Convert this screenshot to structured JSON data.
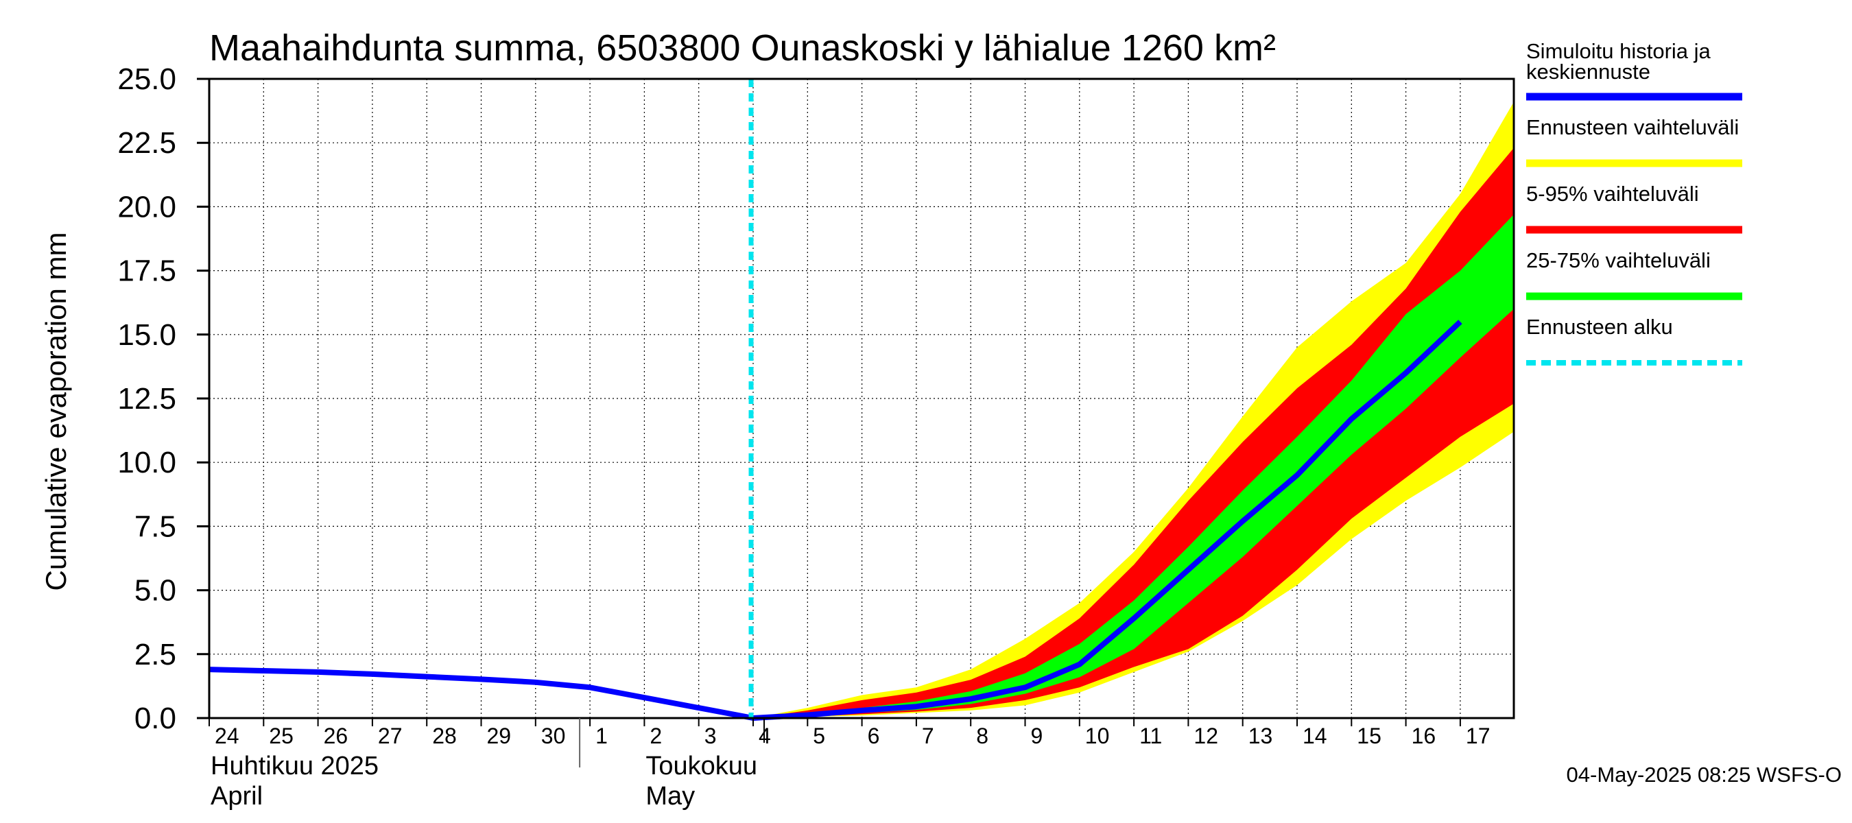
{
  "chart_data": {
    "type": "area",
    "title": "Maahaihdunta summa, 6503800 Ounaskoski y lähialue 1260 km²",
    "ylabel": "Cumulative evaporation   mm",
    "ylim": [
      0,
      25
    ],
    "yticks": [
      "0.0",
      "2.5",
      "5.0",
      "7.5",
      "10.0",
      "12.5",
      "15.0",
      "17.5",
      "20.0",
      "22.5",
      "25.0"
    ],
    "grid": true,
    "x_start_date": "2025-04-24",
    "x_end_date": "2025-05-17",
    "x_tick_labels": [
      "24",
      "25",
      "26",
      "27",
      "28",
      "29",
      "30",
      "1",
      "2",
      "3",
      "4",
      "5",
      "6",
      "7",
      "8",
      "9",
      "10",
      "11",
      "12",
      "13",
      "14",
      "15",
      "16",
      "17"
    ],
    "month_labels": [
      {
        "line1": "Huhtikuu  2025",
        "line2": "April",
        "date": "2025-04-24"
      },
      {
        "line1": "Toukokuu",
        "line2": "May",
        "date": "2025-05-02"
      }
    ],
    "month_separator_date": "2025-05-01",
    "forecast_start_date": "2025-05-04",
    "series": [
      {
        "name": "Simuloitu historia ja keskiennuste",
        "type": "line",
        "color": "#0000ff",
        "x": [
          "2025-04-24",
          "2025-04-25",
          "2025-04-26",
          "2025-04-27",
          "2025-04-28",
          "2025-04-29",
          "2025-04-30",
          "2025-05-01",
          "2025-05-02",
          "2025-05-03",
          "2025-05-04",
          "2025-05-05",
          "2025-05-06",
          "2025-05-07",
          "2025-05-08",
          "2025-05-09",
          "2025-05-10",
          "2025-05-11",
          "2025-05-12",
          "2025-05-13",
          "2025-05-14",
          "2025-05-15",
          "2025-05-16",
          "2025-05-17"
        ],
        "y": [
          1.9,
          1.85,
          1.8,
          1.72,
          1.62,
          1.52,
          1.4,
          1.2,
          0.8,
          0.4,
          0.0,
          0.12,
          0.3,
          0.45,
          0.75,
          1.2,
          2.1,
          3.9,
          5.8,
          7.7,
          9.5,
          11.7,
          13.5,
          15.5
        ]
      }
    ],
    "bands": [
      {
        "name": "Ennusteen vaihteluväli",
        "color": "#ffff00",
        "x": [
          "2025-05-04",
          "2025-05-05",
          "2025-05-06",
          "2025-05-07",
          "2025-05-08",
          "2025-05-09",
          "2025-05-10",
          "2025-05-11",
          "2025-05-12",
          "2025-05-13",
          "2025-05-14",
          "2025-05-15",
          "2025-05-16",
          "2025-05-17",
          "2025-05-18"
        ],
        "upper": [
          0.0,
          0.4,
          0.9,
          1.2,
          1.9,
          3.1,
          4.5,
          6.5,
          9.0,
          11.8,
          14.5,
          16.3,
          17.8,
          20.5,
          24.1
        ],
        "lower": [
          0.0,
          0.05,
          0.1,
          0.2,
          0.3,
          0.5,
          1.0,
          1.8,
          2.6,
          3.8,
          5.2,
          7.0,
          8.5,
          9.8,
          11.2
        ]
      },
      {
        "name": "5-95% vaihteluväli",
        "color": "#ff0000",
        "x": [
          "2025-05-04",
          "2025-05-05",
          "2025-05-06",
          "2025-05-07",
          "2025-05-08",
          "2025-05-09",
          "2025-05-10",
          "2025-05-11",
          "2025-05-12",
          "2025-05-13",
          "2025-05-14",
          "2025-05-15",
          "2025-05-16",
          "2025-05-17",
          "2025-05-18"
        ],
        "upper": [
          0.0,
          0.3,
          0.7,
          1.0,
          1.5,
          2.4,
          3.9,
          6.0,
          8.5,
          10.8,
          12.9,
          14.6,
          16.8,
          19.8,
          22.3
        ],
        "lower": [
          0.0,
          0.05,
          0.15,
          0.25,
          0.4,
          0.7,
          1.2,
          2.0,
          2.7,
          4.0,
          5.8,
          7.8,
          9.4,
          11.0,
          12.3
        ]
      },
      {
        "name": "25-75% vaihteluväli",
        "color": "#00ff00",
        "x": [
          "2025-05-04",
          "2025-05-05",
          "2025-05-06",
          "2025-05-07",
          "2025-05-08",
          "2025-05-09",
          "2025-05-10",
          "2025-05-11",
          "2025-05-12",
          "2025-05-13",
          "2025-05-14",
          "2025-05-15",
          "2025-05-16",
          "2025-05-17",
          "2025-05-18"
        ],
        "upper": [
          0.0,
          0.18,
          0.4,
          0.65,
          1.05,
          1.75,
          2.9,
          4.6,
          6.7,
          8.9,
          11.0,
          13.2,
          15.8,
          17.5,
          19.7
        ],
        "lower": [
          0.0,
          0.08,
          0.2,
          0.32,
          0.55,
          0.95,
          1.6,
          2.7,
          4.5,
          6.3,
          8.3,
          10.3,
          12.1,
          14.1,
          16.0
        ]
      }
    ],
    "legend": [
      {
        "label_line1": "Simuloitu historia ja",
        "label_line2": "keskiennuste",
        "color": "#0000ff",
        "style": "solid"
      },
      {
        "label_line1": "Ennusteen vaihteluväli",
        "label_line2": "",
        "color": "#ffff00",
        "style": "solid"
      },
      {
        "label_line1": "5-95% vaihteluväli",
        "label_line2": "",
        "color": "#ff0000",
        "style": "solid"
      },
      {
        "label_line1": "25-75% vaihteluväli",
        "label_line2": "",
        "color": "#00ff00",
        "style": "solid"
      },
      {
        "label_line1": "Ennusteen alku",
        "label_line2": "",
        "color": "#00e5ee",
        "style": "dashed"
      }
    ],
    "legend_placement": "right",
    "footer": "04-May-2025 08:25 WSFS-O"
  }
}
